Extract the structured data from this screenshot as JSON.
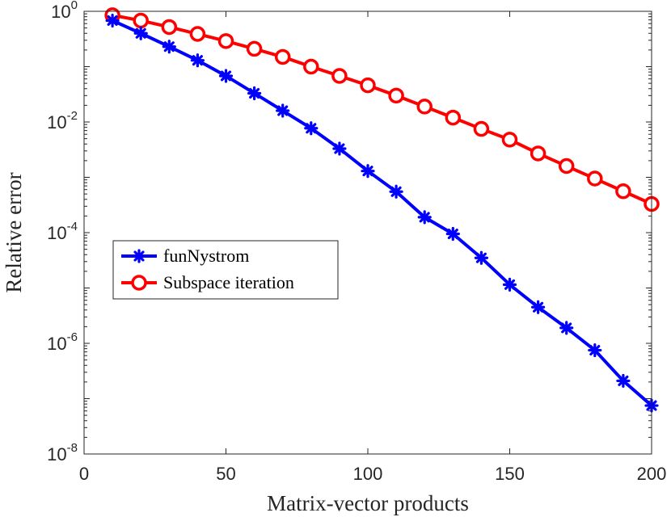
{
  "chart_data": {
    "type": "line",
    "title": "",
    "xlabel": "Matrix-vector products",
    "ylabel": "Relative error",
    "xlim": [
      0,
      200
    ],
    "ylim_log10": [
      -8,
      0
    ],
    "yscale": "log",
    "x_ticks": [
      0,
      50,
      100,
      150,
      200
    ],
    "x_tick_labels": [
      "0",
      "50",
      "100",
      "150",
      "200"
    ],
    "y_tick_exponents": [
      0,
      -2,
      -4,
      -6,
      -8
    ],
    "y_tick_labels": [
      {
        "base": "10",
        "exp": "0"
      },
      {
        "base": "10",
        "exp": "-2"
      },
      {
        "base": "10",
        "exp": "-4"
      },
      {
        "base": "10",
        "exp": "-6"
      },
      {
        "base": "10",
        "exp": "-8"
      }
    ],
    "legend_position": "middle-left",
    "series": [
      {
        "name": "funNystrom",
        "color": "#0000ff",
        "marker": "asterisk",
        "x": [
          10,
          20,
          30,
          40,
          50,
          60,
          70,
          80,
          90,
          100,
          110,
          120,
          130,
          140,
          150,
          160,
          170,
          180,
          190,
          200
        ],
        "y": [
          0.68,
          0.4,
          0.23,
          0.13,
          0.068,
          0.033,
          0.016,
          0.0077,
          0.0033,
          0.0013,
          0.00055,
          0.00019,
          9.5e-05,
          3.5e-05,
          1.15e-05,
          4.5e-06,
          1.9e-06,
          7.5e-07,
          2.1e-07,
          7.5e-08
        ]
      },
      {
        "name": "Subspace iteration",
        "color": "#ff0000",
        "marker": "circle",
        "x": [
          10,
          20,
          30,
          40,
          50,
          60,
          70,
          80,
          90,
          100,
          110,
          120,
          130,
          140,
          150,
          160,
          170,
          180,
          190,
          200
        ],
        "y": [
          0.85,
          0.68,
          0.52,
          0.39,
          0.29,
          0.21,
          0.15,
          0.1,
          0.068,
          0.046,
          0.03,
          0.019,
          0.012,
          0.0075,
          0.0048,
          0.0027,
          0.0016,
          0.00095,
          0.00056,
          0.00033
        ]
      }
    ]
  }
}
